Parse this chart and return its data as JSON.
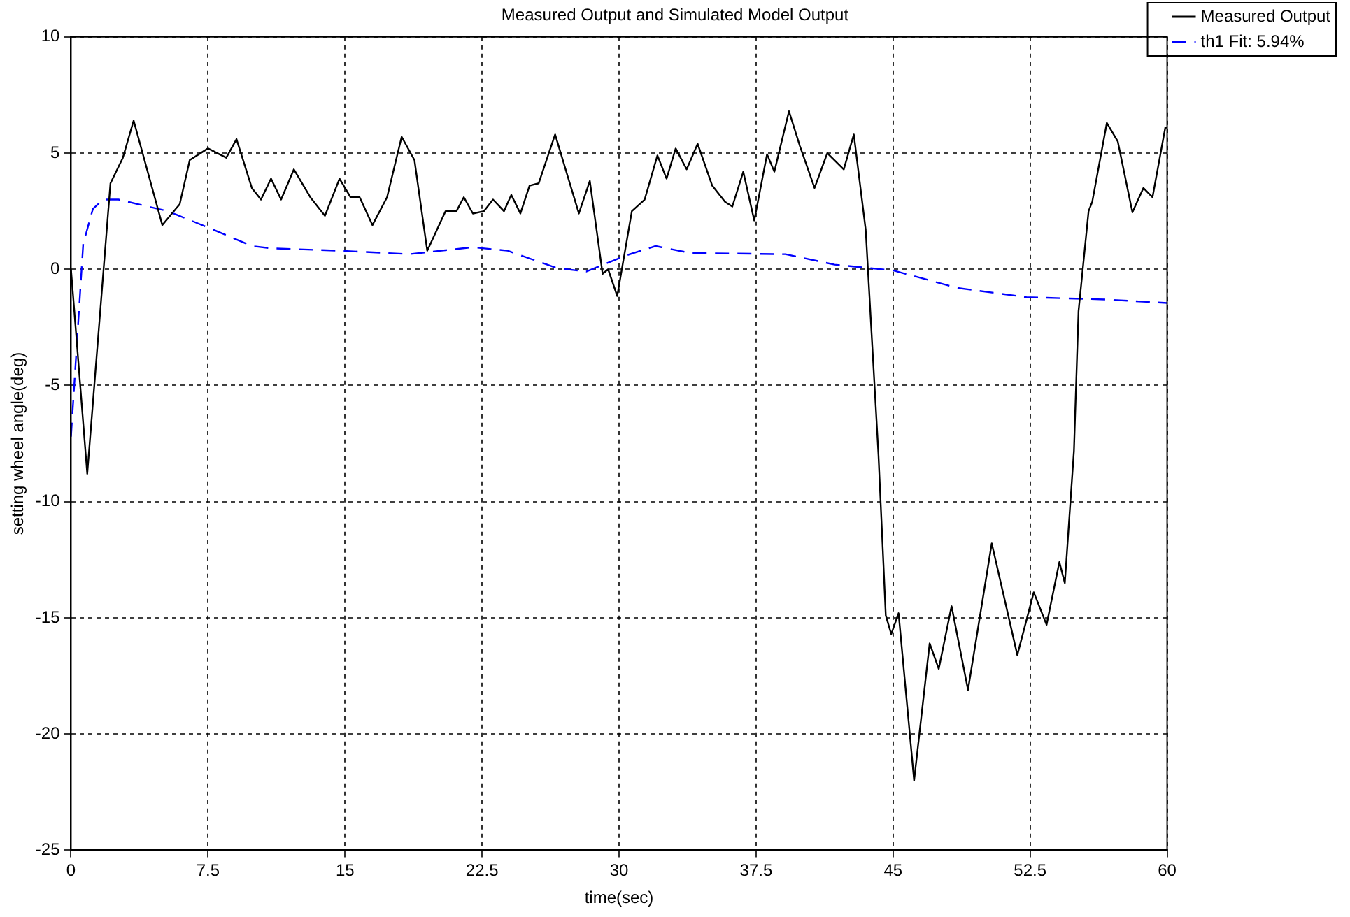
{
  "chart_data": {
    "type": "line",
    "title": "Measured Output and Simulated Model Output",
    "xlabel": "time(sec)",
    "ylabel": "setting wheel angle(deg)",
    "xlim": [
      0,
      60
    ],
    "xticks": [
      0,
      7.5,
      15,
      22.5,
      30,
      37.5,
      45,
      52.5,
      60
    ],
    "ylim": [
      -25,
      10
    ],
    "yticks": [
      -25,
      -20,
      -15,
      -10,
      -5,
      0,
      5,
      10
    ],
    "grid": true,
    "legend": "top right",
    "marker": "none",
    "series": [
      {
        "name": "Measured Output",
        "color": "#000000",
        "line_style": "solid",
        "x": [
          0,
          0.89,
          2.16,
          2.84,
          3.43,
          5.0,
          5.95,
          6.5,
          7.5,
          8.5,
          9.06,
          9.9,
          10.4,
          10.95,
          11.5,
          12.2,
          13.1,
          13.9,
          14.7,
          15.3,
          15.8,
          16.5,
          17.3,
          18.1,
          18.8,
          19.5,
          20.5,
          21.1,
          21.5,
          22.0,
          22.6,
          23.1,
          23.7,
          24.1,
          24.6,
          25.1,
          25.6,
          26.5,
          27.8,
          28.4,
          29.1,
          29.4,
          29.9,
          30.7,
          31.4,
          32.1,
          32.6,
          33.1,
          33.7,
          34.3,
          35.1,
          35.8,
          36.2,
          36.8,
          37.4,
          38.1,
          38.5,
          39.3,
          39.9,
          40.7,
          41.4,
          42.3,
          42.85,
          43.5,
          44.2,
          44.6,
          44.9,
          45.3,
          46.15,
          47.0,
          47.5,
          48.2,
          49.1,
          50.4,
          51.8,
          52.7,
          53.4,
          54.1,
          54.4,
          54.9,
          55.15,
          55.7,
          55.9,
          56.7,
          57.3,
          58.1,
          58.7,
          59.2,
          59.9,
          60
        ],
        "values": [
          0,
          -8.8,
          3.7,
          4.8,
          6.4,
          1.9,
          2.8,
          4.7,
          5.2,
          4.8,
          5.6,
          3.5,
          3.0,
          3.9,
          3.0,
          4.3,
          3.1,
          2.3,
          3.9,
          3.1,
          3.1,
          1.9,
          3.1,
          5.7,
          4.7,
          0.8,
          2.5,
          2.5,
          3.1,
          2.4,
          2.5,
          3.0,
          2.5,
          3.2,
          2.4,
          3.6,
          3.7,
          5.8,
          2.4,
          3.8,
          -0.2,
          0,
          -1.15,
          2.5,
          3.0,
          4.9,
          3.9,
          5.2,
          4.3,
          5.4,
          3.6,
          2.9,
          2.7,
          4.2,
          2.1,
          4.95,
          4.2,
          6.8,
          5.3,
          3.5,
          5.0,
          4.3,
          5.8,
          1.7,
          -8.0,
          -14.9,
          -15.7,
          -14.8,
          -22.0,
          -16.1,
          -17.2,
          -14.5,
          -18.1,
          -11.8,
          -16.6,
          -13.9,
          -15.3,
          -12.6,
          -13.5,
          -7.8,
          -1.8,
          2.5,
          2.9,
          6.3,
          5.5,
          2.45,
          3.5,
          3.1,
          6.1,
          6.1
        ]
      },
      {
        "name": "th1 Fit: 5.94%",
        "color": "#0000ff",
        "line_style": "dashed",
        "x": [
          0,
          0.67,
          1.2,
          1.76,
          2.6,
          5.3,
          7.5,
          9.9,
          11,
          14.7,
          18.5,
          22.0,
          23.9,
          26.6,
          28.2,
          30.4,
          32.0,
          33.9,
          39.1,
          41.8,
          45.0,
          48.5,
          52.3,
          56.6,
          60
        ],
        "values": [
          -7.2,
          1.1,
          2.6,
          3.0,
          3.0,
          2.5,
          1.8,
          1.0,
          0.9,
          0.8,
          0.65,
          0.95,
          0.8,
          0.05,
          -0.1,
          0.6,
          1.0,
          0.7,
          0.65,
          0.2,
          -0.05,
          -0.8,
          -1.2,
          -1.3,
          -1.45
        ]
      }
    ]
  }
}
